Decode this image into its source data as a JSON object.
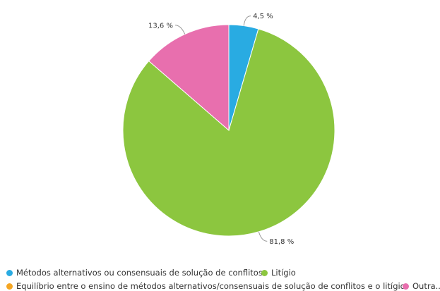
{
  "chart_data": {
    "type": "pie",
    "title": "",
    "slices": [
      {
        "label": "Métodos alternativos ou consensuais de solução de conflitos",
        "value": 4.5,
        "display": "4,5 %",
        "color": "#29abe2"
      },
      {
        "label": "Litígio",
        "value": 81.8,
        "display": "81,8 %",
        "color": "#8cc63f"
      },
      {
        "label": "Equilíbrio entre o ensino de métodos alternativos/consensuais de solução de conflitos e o litígio",
        "value": 0,
        "display": "",
        "color": "#f5a623"
      },
      {
        "label": "Outra...",
        "value": 13.6,
        "display": "13,6 %",
        "color": "#e86fae"
      }
    ],
    "legend_position": "bottom"
  }
}
